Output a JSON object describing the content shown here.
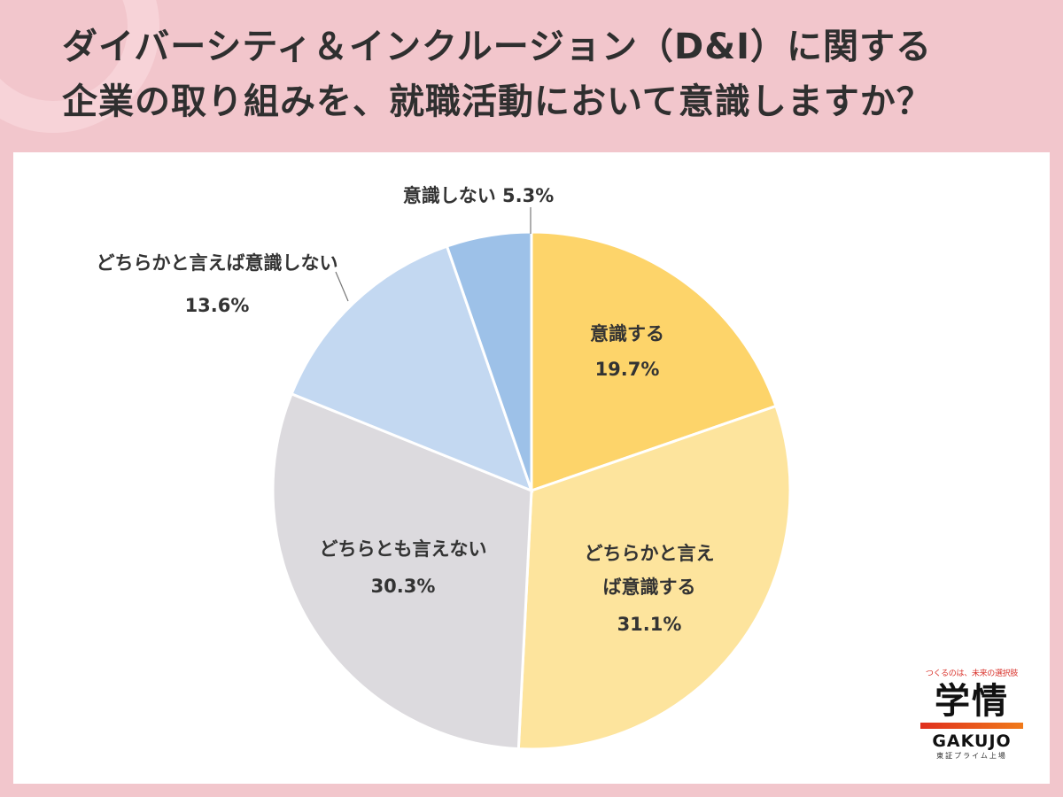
{
  "title": {
    "line1": "ダイバーシティ＆インクルージョン（D&I）に関する",
    "line2": "企業の取り組みを、就職活動において意識しますか？"
  },
  "chart_data": {
    "type": "pie",
    "start_angle_deg": 0,
    "direction": "clockwise",
    "slices": [
      {
        "label": "意識する",
        "value": 19.7,
        "value_text": "19.7%",
        "color": "#fdd46a"
      },
      {
        "label": "どちらかと言えば意識する",
        "value": 31.1,
        "value_text": "31.1%",
        "color": "#fde49d"
      },
      {
        "label": "どちらとも言えない",
        "value": 30.3,
        "value_text": "30.3%",
        "color": "#dcdade"
      },
      {
        "label": "どちらかと言えば意識しない",
        "value": 13.6,
        "value_text": "13.6%",
        "color": "#c3d8f1"
      },
      {
        "label": "意識しない",
        "value": 5.3,
        "value_text": "5.3%",
        "color": "#9dc1e8"
      }
    ]
  },
  "labels": {
    "s0": {
      "line1": "意識する",
      "line2": "19.7%"
    },
    "s1": {
      "line1": "どちらかと言え",
      "line2": "ば意識する",
      "line3": "31.1%"
    },
    "s2": {
      "line1": "どちらとも言えない",
      "line2": "30.3%"
    },
    "s3": {
      "line1": "どちらかと言えば意識しない",
      "line2": "13.6%"
    },
    "s4": {
      "line1": "意識しない 5.3%"
    }
  },
  "logo": {
    "tagline": "つくるのは、未来の選択肢",
    "kanji": "学情",
    "latin": "GAKUJO",
    "sub": "東証プライム上場",
    "bar_color_start": "#e0301e",
    "bar_color_end": "#f07a1a"
  }
}
